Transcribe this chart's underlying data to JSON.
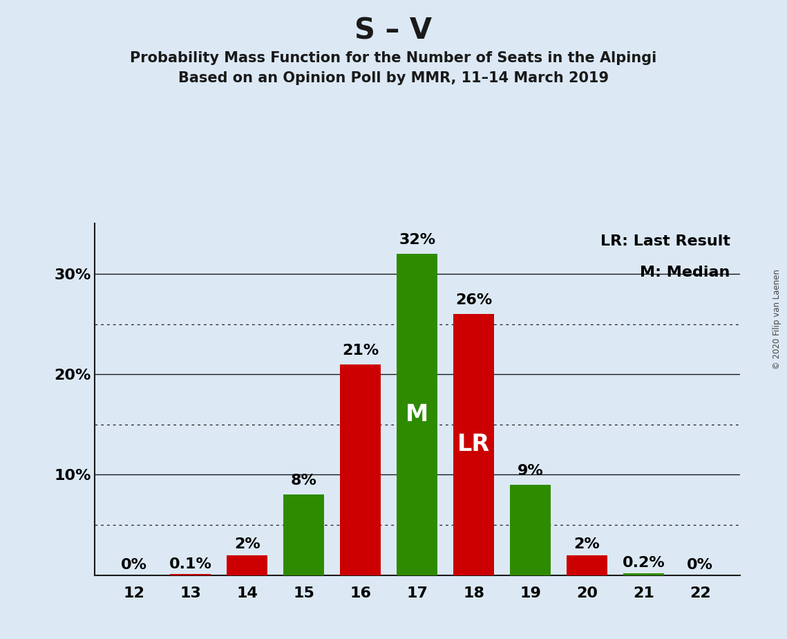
{
  "title": "S – V",
  "subtitle1": "Probability Mass Function for the Number of Seats in the Alpingi",
  "subtitle2": "Based on an Opinion Poll by MMR, 11–14 March 2019",
  "copyright": "© 2020 Filip van Laenen",
  "seats": [
    12,
    13,
    14,
    15,
    16,
    17,
    18,
    19,
    20,
    21,
    22
  ],
  "values": [
    0.0,
    0.1,
    2.0,
    8.0,
    21.0,
    32.0,
    26.0,
    9.0,
    2.0,
    0.2,
    0.0
  ],
  "colors": [
    "#cc0000",
    "#cc0000",
    "#cc0000",
    "#2e8b00",
    "#cc0000",
    "#2e8b00",
    "#cc0000",
    "#2e8b00",
    "#cc0000",
    "#2e8b00",
    "#2e8b00"
  ],
  "bar_labels": [
    "0%",
    "0.1%",
    "2%",
    "8%",
    "21%",
    "32%",
    "26%",
    "9%",
    "2%",
    "0.2%",
    "0%"
  ],
  "median_seat": 17,
  "lr_seat": 18,
  "legend_lr": "LR: Last Result",
  "legend_m": "M: Median",
  "ylim_max": 35,
  "dotted_yticks": [
    5,
    15,
    25
  ],
  "solid_yticks": [
    10,
    20,
    30
  ],
  "ytick_labels_pos": [
    10,
    20,
    30
  ],
  "ytick_labels_text": [
    "10%",
    "20%",
    "30%"
  ],
  "background_color": "#dce9f5",
  "bar_width": 0.72,
  "title_fontsize": 30,
  "subtitle_fontsize": 15,
  "tick_fontsize": 16,
  "legend_fontsize": 16,
  "bar_label_fontsize": 16,
  "inside_label_fontsize": 24
}
